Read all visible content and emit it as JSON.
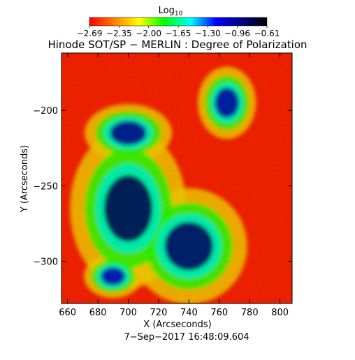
{
  "colorbar": {
    "label_base": "Log",
    "label_sub": "10",
    "tick_labels": [
      "−2.69",
      "−2.35",
      "−2.00",
      "−1.65",
      "−1.30",
      "−0.96",
      "−0.61"
    ],
    "range": [
      -2.69,
      -0.61
    ]
  },
  "chart_data": {
    "type": "heatmap",
    "title": "Hinode SOT/SP − MERLIN : Degree of Polarization",
    "subtitle": "7−Sep−2017 16:48:09.604",
    "xlabel": "X (Arcseconds)",
    "ylabel": "Y (Arcseconds)",
    "xlim": [
      656,
      808
    ],
    "ylim": [
      -328,
      -162
    ],
    "x_ticks": [
      660,
      680,
      700,
      720,
      740,
      760,
      780,
      800
    ],
    "y_ticks": [
      -200,
      -250,
      -300
    ],
    "colormap": [
      "#ff0000",
      "#ff7f00",
      "#ffff00",
      "#00ff00",
      "#00ffff",
      "#0000ff",
      "#000080",
      "#000000"
    ],
    "value_scale": "log10",
    "value_range": [
      -2.69,
      -0.61
    ],
    "regions": [
      {
        "kind": "strong-polarization",
        "center": [
          700,
          -265
        ],
        "radius": [
          16,
          22
        ],
        "level": -0.8
      },
      {
        "kind": "strong-polarization",
        "center": [
          740,
          -290
        ],
        "radius": [
          16,
          16
        ],
        "level": -0.85
      },
      {
        "kind": "strong-polarization",
        "center": [
          700,
          -215
        ],
        "radius": [
          12,
          8
        ],
        "level": -0.95
      },
      {
        "kind": "strong-polarization",
        "center": [
          765,
          -195
        ],
        "radius": [
          8,
          10
        ],
        "level": -1.0
      },
      {
        "kind": "strong-polarization",
        "center": [
          690,
          -310
        ],
        "radius": [
          8,
          6
        ],
        "level": -1.05
      }
    ]
  }
}
